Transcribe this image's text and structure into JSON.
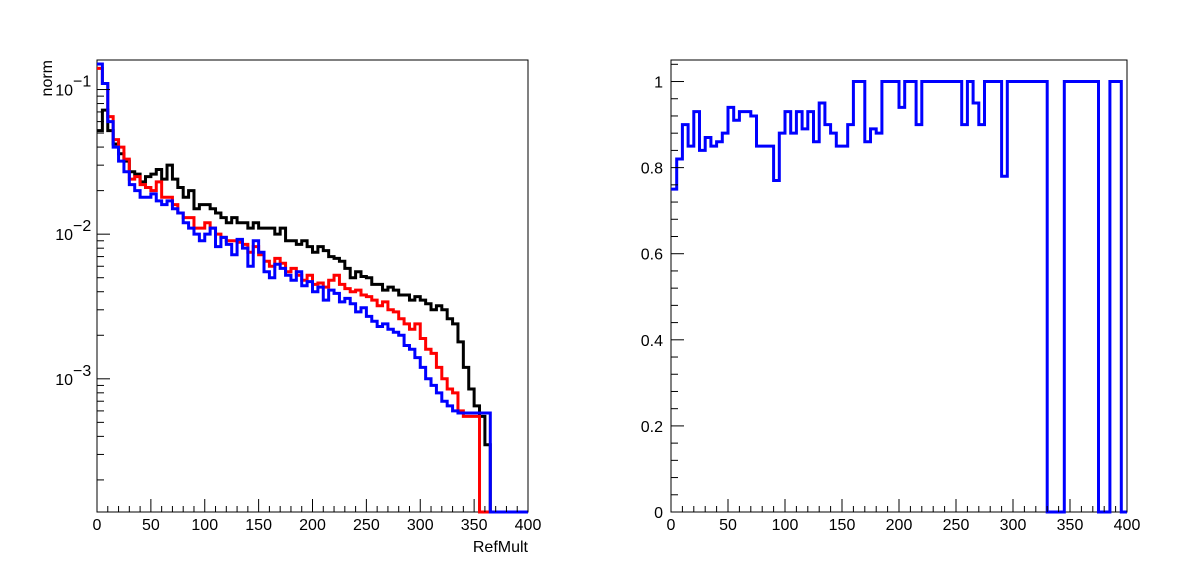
{
  "chart_data": [
    {
      "type": "step",
      "title": "",
      "xlabel": "RefMult",
      "ylabel": "norm",
      "xlim": [
        0,
        400
      ],
      "ylim": [
        0.00012,
        0.16
      ],
      "yscale": "log",
      "x_ticks": [
        0,
        50,
        100,
        150,
        200,
        250,
        300,
        350,
        400
      ],
      "y_ticks": [
        {
          "value": 0.1,
          "mantissa": "10",
          "exponent": "−1"
        },
        {
          "value": 0.01,
          "mantissa": "10",
          "exponent": "−2"
        },
        {
          "value": 0.001,
          "mantissa": "10",
          "exponent": "−3"
        }
      ],
      "bin_width": 5,
      "series": [
        {
          "color": "#000000",
          "values": [
            0.052,
            0.072,
            0.052,
            0.042,
            0.036,
            0.032,
            0.027,
            0.026,
            0.023,
            0.025,
            0.026,
            0.028,
            0.024,
            0.03,
            0.024,
            0.021,
            0.018,
            0.02,
            0.015,
            0.016,
            0.016,
            0.015,
            0.014,
            0.013,
            0.012,
            0.013,
            0.012,
            0.012,
            0.011,
            0.012,
            0.011,
            0.011,
            0.011,
            0.01,
            0.011,
            0.009,
            0.009,
            0.0085,
            0.009,
            0.0082,
            0.0075,
            0.0082,
            0.0077,
            0.007,
            0.0068,
            0.0065,
            0.0058,
            0.005,
            0.0055,
            0.0051,
            0.005,
            0.0045,
            0.0045,
            0.0041,
            0.0043,
            0.0041,
            0.0038,
            0.0038,
            0.0035,
            0.0037,
            0.0035,
            0.0033,
            0.003,
            0.0032,
            0.003,
            0.0026,
            0.0024,
            0.0018,
            0.0012,
            0.00085,
            0.00065,
            0.00055,
            0.00035,
            0.0,
            0.0,
            0.0,
            0.0,
            0.0,
            0.0,
            0.0
          ]
        },
        {
          "color": "#ff0000",
          "values": [
            0.14,
            0.11,
            0.065,
            0.045,
            0.04,
            0.033,
            0.024,
            0.025,
            0.022,
            0.021,
            0.02,
            0.023,
            0.018,
            0.018,
            0.016,
            0.014,
            0.013,
            0.013,
            0.011,
            0.011,
            0.012,
            0.011,
            0.01,
            0.0095,
            0.009,
            0.009,
            0.0088,
            0.0085,
            0.0075,
            0.0082,
            0.0072,
            0.0065,
            0.006,
            0.0068,
            0.0063,
            0.0055,
            0.0058,
            0.0052,
            0.0048,
            0.0052,
            0.0045,
            0.0046,
            0.0043,
            0.0048,
            0.0052,
            0.0045,
            0.0042,
            0.004,
            0.0041,
            0.0038,
            0.0037,
            0.0035,
            0.0032,
            0.0034,
            0.003,
            0.0029,
            0.0026,
            0.0024,
            0.0022,
            0.0024,
            0.0019,
            0.0016,
            0.0015,
            0.0012,
            0.001,
            0.00085,
            0.0008,
            0.0006,
            0.00055,
            0.00055,
            0.00055,
            0.0,
            0.0,
            0.0,
            0.0,
            0.0,
            0.0,
            0.0,
            0.0,
            0.0
          ]
        },
        {
          "color": "#0000ff",
          "values": [
            0.15,
            0.11,
            0.06,
            0.04,
            0.032,
            0.027,
            0.022,
            0.02,
            0.018,
            0.018,
            0.019,
            0.017,
            0.016,
            0.017,
            0.015,
            0.014,
            0.012,
            0.011,
            0.01,
            0.009,
            0.01,
            0.011,
            0.0082,
            0.0095,
            0.0085,
            0.0072,
            0.0092,
            0.008,
            0.006,
            0.009,
            0.0075,
            0.0055,
            0.005,
            0.0062,
            0.0058,
            0.0052,
            0.0048,
            0.0055,
            0.0044,
            0.0047,
            0.004,
            0.0043,
            0.0035,
            0.0041,
            0.0039,
            0.0034,
            0.0036,
            0.0033,
            0.0029,
            0.0031,
            0.0027,
            0.0025,
            0.0023,
            0.0024,
            0.0022,
            0.0021,
            0.002,
            0.0017,
            0.0016,
            0.0014,
            0.0012,
            0.001,
            0.0009,
            0.0008,
            0.0007,
            0.00065,
            0.0006,
            0.00058,
            0.00058,
            0.00058,
            0.00058,
            0.00058,
            0.00058,
            0.0,
            0.0,
            0.0,
            0.0,
            0.0,
            0.0,
            0.0
          ]
        }
      ]
    },
    {
      "type": "step",
      "title": "",
      "xlabel": "",
      "ylabel": "",
      "xlim": [
        0,
        400
      ],
      "ylim": [
        0,
        1.05
      ],
      "yscale": "linear",
      "x_ticks": [
        0,
        50,
        100,
        150,
        200,
        250,
        300,
        350,
        400
      ],
      "y_ticks": [
        0,
        0.2,
        0.4,
        0.6,
        0.8,
        1
      ],
      "bin_width": 5,
      "series": [
        {
          "color": "#0000ff",
          "values": [
            0.75,
            0.82,
            0.9,
            0.85,
            0.93,
            0.84,
            0.87,
            0.85,
            0.86,
            0.88,
            0.94,
            0.91,
            0.93,
            0.93,
            0.92,
            0.85,
            0.85,
            0.85,
            0.77,
            0.88,
            0.93,
            0.88,
            0.93,
            0.89,
            0.93,
            0.86,
            0.95,
            0.9,
            0.88,
            0.85,
            0.85,
            0.9,
            1.0,
            1.0,
            0.86,
            0.89,
            0.88,
            1.0,
            1.0,
            1.0,
            0.94,
            1.0,
            1.0,
            0.9,
            1.0,
            1.0,
            1.0,
            1.0,
            1.0,
            1.0,
            1.0,
            0.9,
            1.0,
            0.95,
            0.9,
            1.0,
            1.0,
            1.0,
            0.78,
            1.0,
            1.0,
            1.0,
            1.0,
            1.0,
            1.0,
            1.0,
            0.0,
            0.0,
            0.0,
            1.0,
            1.0,
            1.0,
            1.0,
            1.0,
            1.0,
            0.0,
            0.0,
            1.0,
            1.0,
            0.0
          ]
        }
      ]
    }
  ]
}
